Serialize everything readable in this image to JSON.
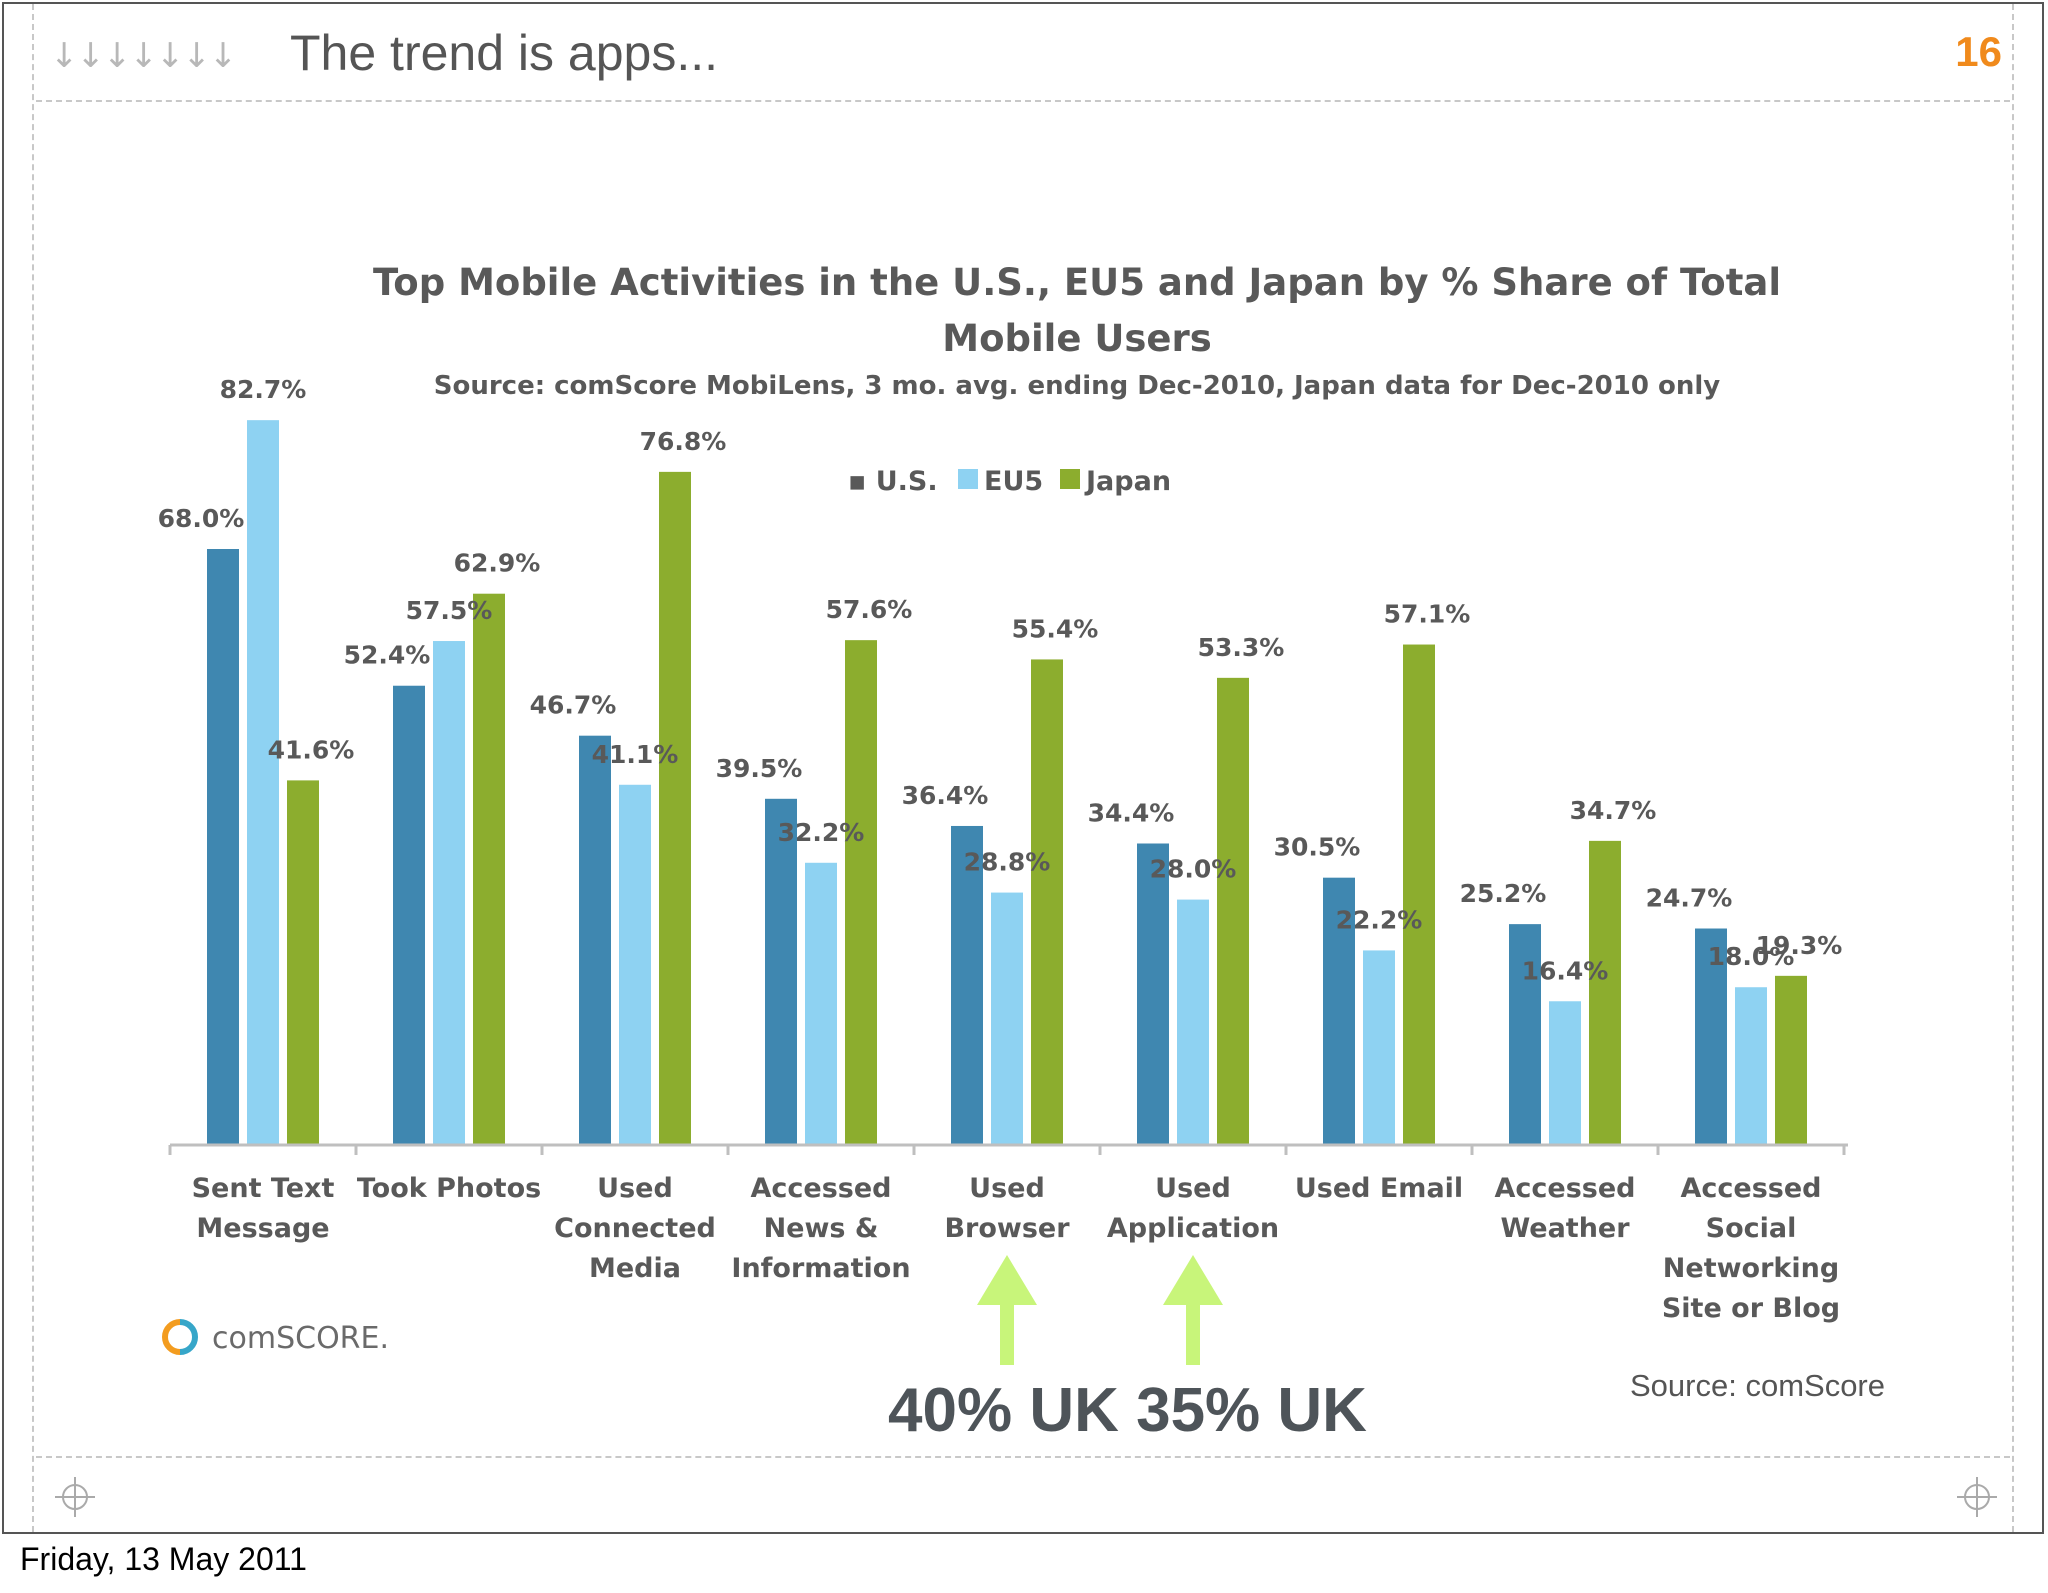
{
  "slide": {
    "header_arrows": "↓↓↓↓↓↓↓",
    "title": "The trend is apps...",
    "number": "16",
    "date": "Friday, 13 May 2011",
    "source_note": "Source: comScore",
    "uk_callout": "40% UK 35% UK",
    "brand": "comSCORE.",
    "accent_color": "#f08a1c",
    "arrow_color": "#c8f57a",
    "icons": [
      "crosshair-icon",
      "down-arrow-icon",
      "up-arrow-icon",
      "comscore-logo-icon"
    ]
  },
  "chart_data": {
    "type": "bar",
    "title": "Top Mobile Activities in the U.S., EU5 and Japan by % Share of Total Mobile Users",
    "title_lines": [
      "Top Mobile Activities in the U.S., EU5 and Japan by % Share of Total",
      "Mobile Users"
    ],
    "subtitle": "Source: comScore MobiLens, 3 mo. avg. ending Dec-2010, Japan data for Dec-2010 only",
    "xlabel": "",
    "ylabel": "",
    "ylim": [
      0,
      85
    ],
    "grid": false,
    "legend_position": "top-center",
    "categories": [
      [
        "Sent Text",
        "Message"
      ],
      [
        "Took Photos"
      ],
      [
        "Used",
        "Connected",
        "Media"
      ],
      [
        "Accessed",
        "News &",
        "Information"
      ],
      [
        "Used",
        "Browser"
      ],
      [
        "Used",
        "Application"
      ],
      [
        "Used Email"
      ],
      [
        "Accessed",
        "Weather"
      ],
      [
        "Accessed",
        "Social",
        "Networking",
        "Site or Blog"
      ]
    ],
    "series": [
      {
        "name": "U.S.",
        "legend_label": "▪ U.S.",
        "color": "#3f87b0",
        "values": [
          68.0,
          52.4,
          46.7,
          39.5,
          36.4,
          34.4,
          30.5,
          25.2,
          24.7
        ],
        "labels": [
          "68.0%",
          "52.4%",
          "46.7%",
          "39.5%",
          "36.4%",
          "34.4%",
          "30.5%",
          "25.2%",
          "24.7%"
        ]
      },
      {
        "name": "EU5",
        "legend_label": "EU5",
        "color": "#8ed2f2",
        "values": [
          82.7,
          57.5,
          41.1,
          32.2,
          28.8,
          28.0,
          22.2,
          16.4,
          18.0
        ],
        "labels": [
          "82.7%",
          "57.5%",
          "41.1%",
          "32.2%",
          "28.8%",
          "28.0%",
          "22.2%",
          "16.4%",
          "18.0%"
        ]
      },
      {
        "name": "Japan",
        "legend_label": "Japan",
        "color": "#8cad2e",
        "values": [
          41.6,
          62.9,
          76.8,
          57.6,
          55.4,
          53.3,
          57.1,
          34.7,
          19.3
        ],
        "labels": [
          "41.6%",
          "62.9%",
          "76.8%",
          "57.6%",
          "55.4%",
          "53.3%",
          "57.1%",
          "34.7%",
          "19.3%"
        ]
      }
    ],
    "highlighted_categories": [
      "Used Browser",
      "Used Application"
    ]
  }
}
